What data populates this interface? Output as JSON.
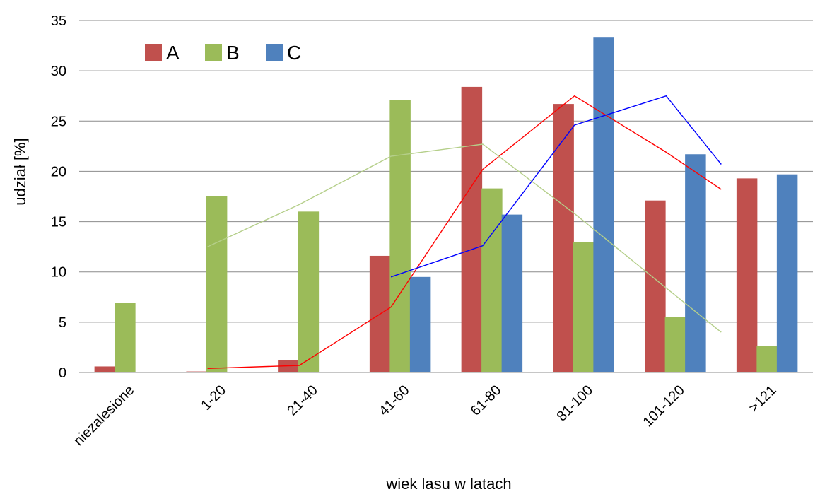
{
  "chart_data": {
    "type": "bar",
    "title": "",
    "xlabel": "wiek lasu w latach",
    "ylabel": "udział [%]",
    "ylim": [
      0,
      35
    ],
    "yticks": [
      0,
      5,
      10,
      15,
      20,
      25,
      30,
      35
    ],
    "grid": "horizontal",
    "legend_position": "top-left",
    "categories": [
      "niezalesione",
      "1-20",
      "21-40",
      "41-60",
      "61-80",
      "81-100",
      "101-120",
      ">121"
    ],
    "series": [
      {
        "name": "A",
        "color": "#c0504d",
        "values": [
          0.6,
          0.1,
          1.2,
          11.6,
          28.4,
          26.7,
          17.1,
          19.3
        ]
      },
      {
        "name": "B",
        "color": "#9bbb59",
        "values": [
          6.9,
          17.5,
          16.0,
          27.1,
          18.3,
          13.0,
          5.5,
          2.6
        ]
      },
      {
        "name": "C",
        "color": "#4f81bd",
        "values": [
          0,
          0,
          0,
          9.5,
          15.7,
          33.3,
          21.7,
          19.7
        ]
      }
    ],
    "trend_lines": [
      {
        "series": "A",
        "color": "#ff0000",
        "points": [
          [
            1.4,
            0.4
          ],
          [
            2.4,
            0.7
          ],
          [
            3.4,
            6.5
          ],
          [
            4.4,
            20.2
          ],
          [
            5.4,
            27.5
          ],
          [
            6.4,
            21.9
          ],
          [
            7.0,
            18.2
          ]
        ]
      },
      {
        "series": "B",
        "color": "#b5cf8a",
        "points": [
          [
            1.4,
            12.5
          ],
          [
            2.4,
            16.7
          ],
          [
            3.4,
            21.5
          ],
          [
            4.4,
            22.7
          ],
          [
            5.4,
            15.8
          ],
          [
            6.4,
            8.4
          ],
          [
            7.0,
            4.0
          ]
        ]
      },
      {
        "series": "C",
        "color": "#0000ff",
        "points": [
          [
            3.4,
            9.5
          ],
          [
            4.4,
            12.6
          ],
          [
            5.4,
            24.6
          ],
          [
            6.4,
            27.5
          ],
          [
            7.0,
            20.7
          ]
        ]
      }
    ]
  }
}
